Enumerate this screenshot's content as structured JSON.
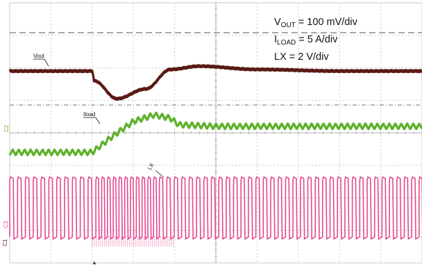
{
  "legend": {
    "vout": {
      "base": "V",
      "sub": "OUT",
      "text": " = 100 mV/div"
    },
    "iload": {
      "base": "I",
      "sub": "LOAD",
      "text": " = 5 A/div"
    },
    "lx": {
      "base": "",
      "sub": "",
      "text": "LX = 2 V/div"
    }
  },
  "trace_labels": {
    "vout": "Vout",
    "iload": "Iload",
    "lx": "LX"
  },
  "colors": {
    "vout": "#5a1a14",
    "iload": "#5fb12c",
    "lx": "#e4478f",
    "grid": "#c8c8c8",
    "ref": "#8c8c8c"
  },
  "chart_data": {
    "type": "line",
    "title": "",
    "xlabel": "",
    "ylabel": "",
    "grid": true,
    "divisions": {
      "x": 10,
      "y": 8
    },
    "series": [
      {
        "name": "VOUT",
        "unit": "div",
        "x": [
          0,
          2.0,
          2.05,
          2.6,
          3.3,
          3.9,
          4.6,
          6.0,
          8.0,
          10.0
        ],
        "y": [
          5.9,
          5.9,
          5.6,
          5.05,
          5.35,
          5.95,
          6.05,
          5.95,
          5.9,
          5.9
        ]
      },
      {
        "name": "ILOAD",
        "unit": "div",
        "x": [
          0,
          2.0,
          2.5,
          3.0,
          3.5,
          3.9,
          4.1,
          5.0,
          7.0,
          10.0
        ],
        "y": [
          3.4,
          3.4,
          3.9,
          4.35,
          4.55,
          4.45,
          4.25,
          4.2,
          4.2,
          4.2
        ]
      },
      {
        "name": "LX",
        "unit": "div",
        "switching": true,
        "x": [
          0,
          10.0
        ],
        "y_high": 2.6,
        "y_low": 0.8,
        "periods_div": [
          0.19,
          0.14,
          0.18
        ]
      }
    ]
  }
}
